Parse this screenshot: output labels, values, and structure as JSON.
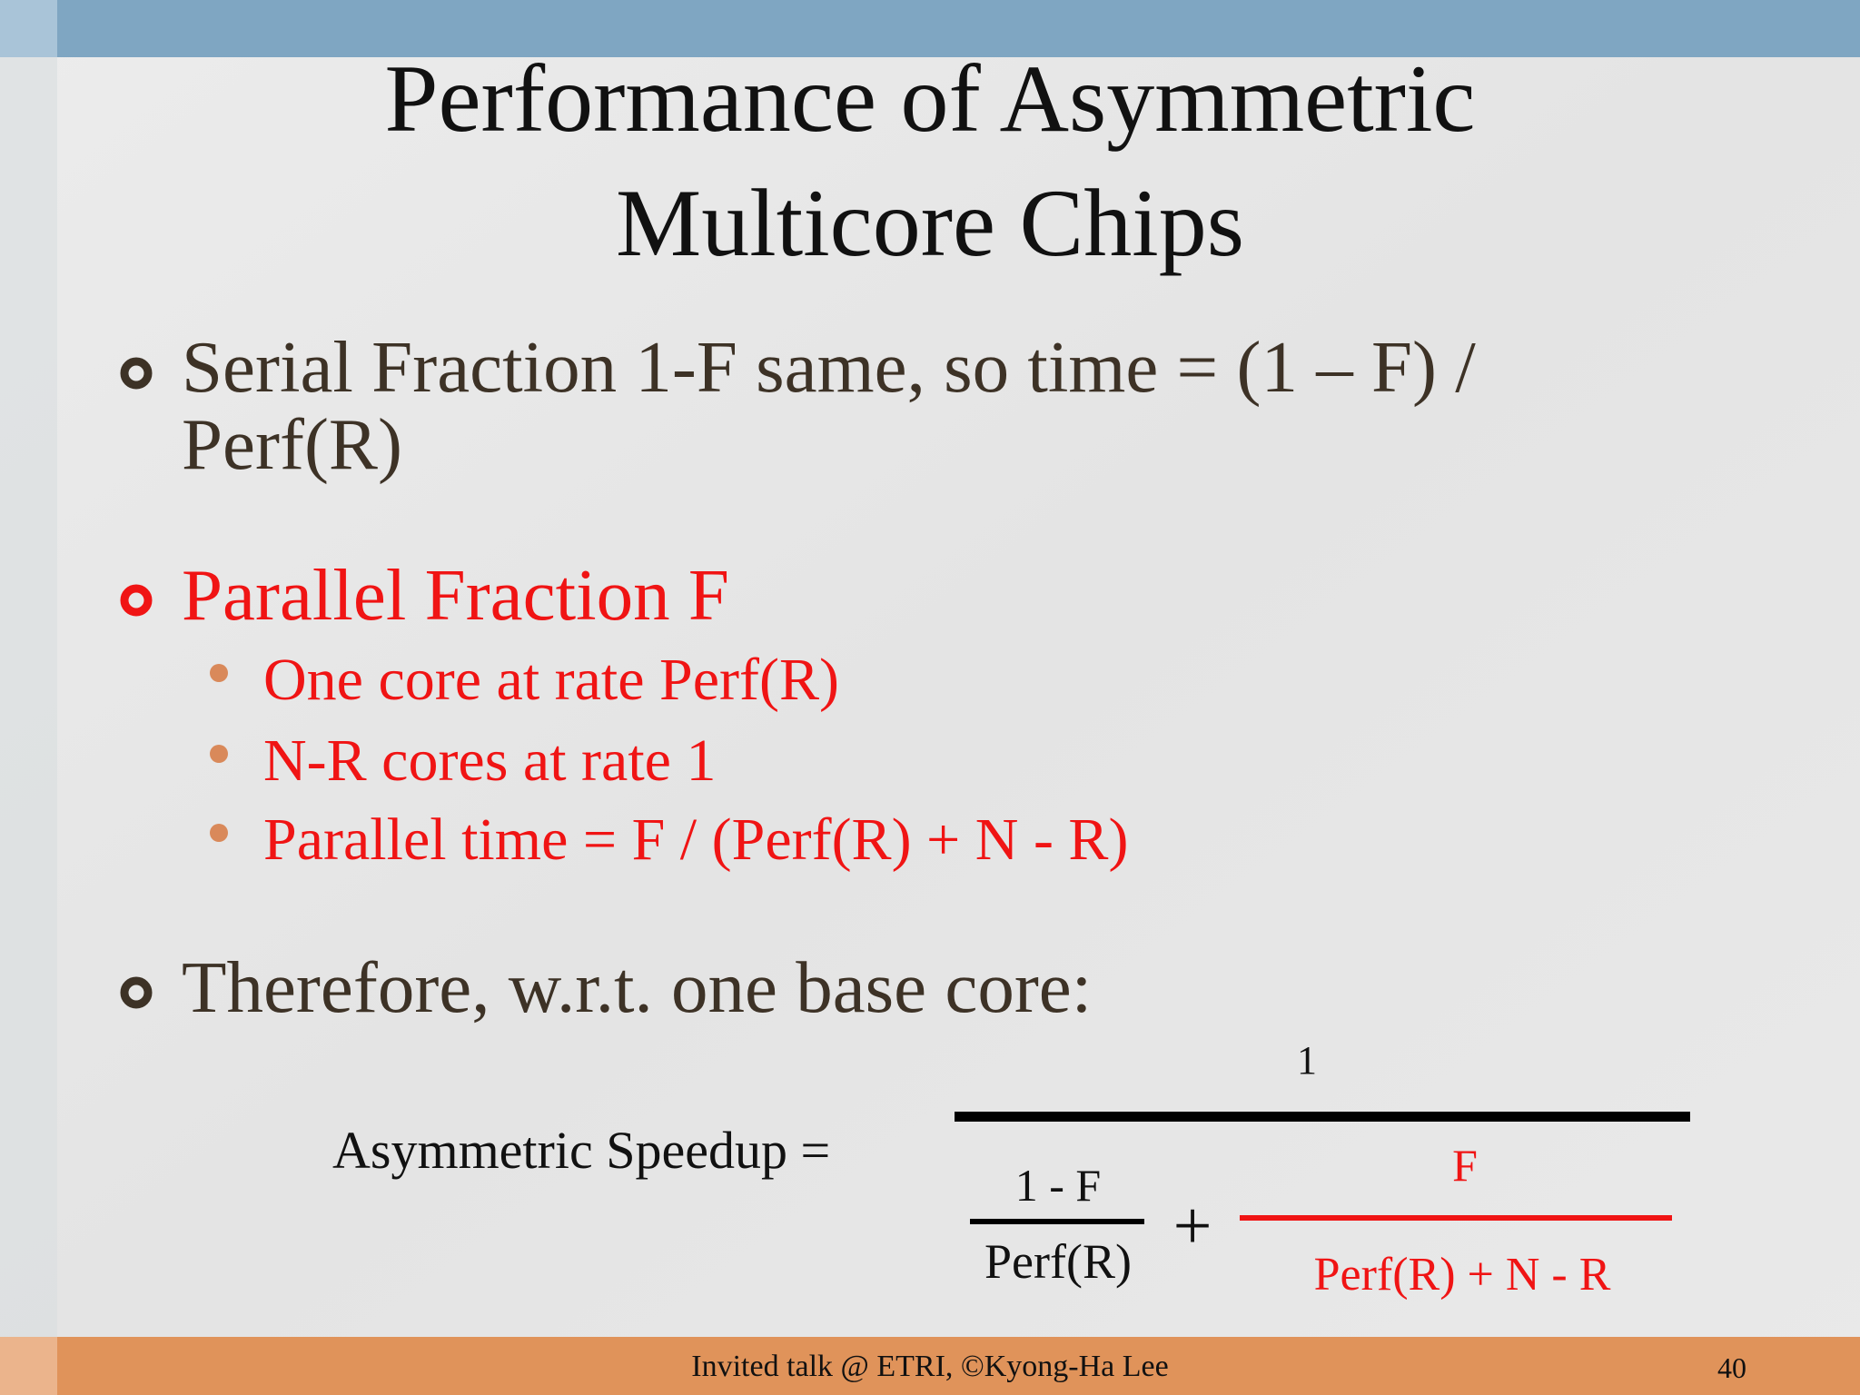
{
  "title": [
    "Performance of Asymmetric",
    "Multicore Chips"
  ],
  "bullets": [
    {
      "lines": [
        "Serial Fraction 1-F same, so time = (1 – F) /",
        "Perf(R)"
      ]
    },
    {
      "lines": [
        "Parallel Fraction F"
      ],
      "sub": [
        "One core at rate Perf(R)",
        "N-R cores at rate 1",
        "Parallel time = F / (Perf(R) + N - R)"
      ]
    },
    {
      "lines": [
        "Therefore, w.r.t. one base core:"
      ]
    }
  ],
  "formula": {
    "label": "Asymmetric Speedup  =",
    "numerator": "1",
    "term1": {
      "numerator": "1 - F",
      "denominator": "Perf(R)"
    },
    "operator": "+",
    "term2": {
      "numerator": "F",
      "denominator": "Perf(R) + N - R"
    }
  },
  "footer": {
    "text": "Invited talk @ ETRI, ©Kyong-Ha Lee",
    "page": "40"
  }
}
